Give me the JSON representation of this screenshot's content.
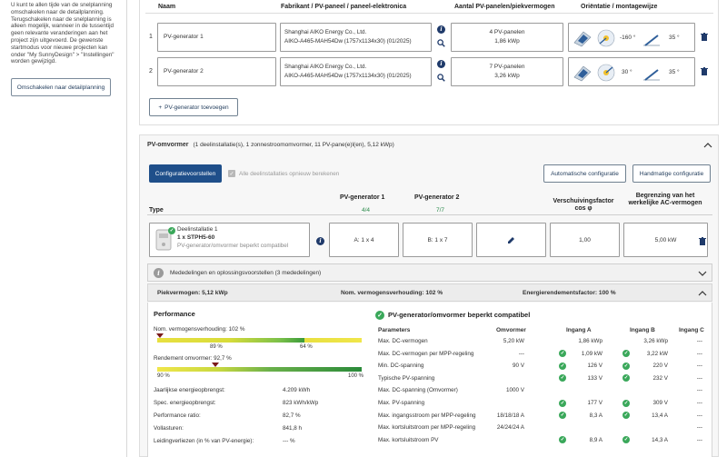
{
  "sidebar": {
    "info_text": "U kunt te allen tijde van de snelplanning omschakelen naar de detailplanning. Terugschakelen naar de snelplanning is alleen mogelijk, wanneer in de tussentijd geen relevante veranderingen aan het project zijn uitgevoerd. De gewenste startmodus voor nieuwe projecten kan onder \"My SunnyDesign\" > \"Instellingen\" worden gewijzigd.",
    "switch_button": "Omschakelen naar detailplanning"
  },
  "generators": {
    "col_name": "Naam",
    "col_manufacturer": "Fabrikant / PV-paneel / paneel-elektronica",
    "col_count": "Aantal PV-panelen/piekvermogen",
    "col_orientation": "Oriëntatie / montagewijze",
    "rows": [
      {
        "index": "1",
        "name": "PV-generator 1",
        "manufacturer": "Shanghai AIKO Energy Co., Ltd.",
        "module": "AIKO-A465-MAH54Dw (1757x1134x30) (01/2025)",
        "panels": "4 PV-panelen",
        "power": "1,86 kWp",
        "azimuth": "-160 °",
        "tilt": "35 °"
      },
      {
        "index": "2",
        "name": "PV-generator 2",
        "manufacturer": "Shanghai AIKO Energy Co., Ltd.",
        "module": "AIKO-A465-MAH54Dw (1757x1134x30) (01/2025)",
        "panels": "7 PV-panelen",
        "power": "3,26 kWp",
        "azimuth": "30 °",
        "tilt": "35 °"
      }
    ],
    "add_button": "PV-generator toevoegen"
  },
  "inverter": {
    "title": "PV-omvormer",
    "summary": "(1 deelinstallatie(s), 1 zonnestroomomvormer, 11 PV-pane(e)l(en), 5,12 kWp)",
    "config_button": "Configuratievoorstellen",
    "recalc_label": "Alle deelinstallaties opnieuw berekenen",
    "auto_button": "Automatische configuratie",
    "manual_button": "Handmatige configuratie",
    "col_type": "Type",
    "col_gen1": "PV-generator 1",
    "col_gen1_count": "4/4",
    "col_gen2": "PV-generator 2",
    "col_gen2_count": "7/7",
    "col_cos": "Verschuivingsfactor cos φ",
    "col_limit": "Begrenzing van het werkelijke AC-vermogen",
    "sub_name": "Deelinstallatie 1",
    "sub_model": "1 x STPH5-60",
    "sub_status": "PV-generator/omvormer beperkt compatibel",
    "input_a": "A: 1 x 4",
    "input_b": "B: 1 x 7",
    "cos_value": "1,00",
    "limit_value": "5,00 kW",
    "messages": "Mededelingen en oplossingsvoorstellen (3 mededelingen)",
    "peak_power": "Piekvermogen: 5,12 kWp",
    "ratio": "Nom. vermogensverhouding: 102 %",
    "energy_factor": "Energierendementsfactor: 100 %"
  },
  "performance": {
    "title": "Performance",
    "ratio_label": "Nom. vermogensverhouding: 102 %",
    "ratio_marker": 0.02,
    "ratio_tick_left": "89 %",
    "ratio_tick_right": "64 %",
    "efficiency_label": "Rendement omvormer: 92,7 %",
    "efficiency_marker": 0.28,
    "eff_tick_left": "90 %",
    "eff_tick_right": "100 %",
    "stats": [
      {
        "label": "Jaarlijkse energieopbrengst:",
        "value": "4.209 kWh"
      },
      {
        "label": "Spec. energieopbrengst:",
        "value": "823 kWh/kWp"
      },
      {
        "label": "Performance ratio:",
        "value": "82,7 %"
      },
      {
        "label": "Vollasturen:",
        "value": "841,8  h"
      },
      {
        "label": "Leidingverliezen (in % van PV-energie):",
        "value": "--- %"
      }
    ]
  },
  "compat": {
    "title": "PV-generator/omvormer beperkt compatibel",
    "headers": [
      "Parameters",
      "Omvormer",
      "Ingang A",
      "Ingang B",
      "Ingang C"
    ],
    "rows": [
      {
        "param": "Max. DC-vermogen",
        "inv": "5,20 kW",
        "a": "1,86 kWp",
        "a_ok": false,
        "b": "3,26 kWp",
        "b_ok": false,
        "c": "---"
      },
      {
        "param": "Max. DC-vermogen per MPP-regeling",
        "inv": "---",
        "a": "1,09 kW",
        "a_ok": true,
        "b": "3,22 kW",
        "b_ok": true,
        "c": "---"
      },
      {
        "param": "Min. DC-spanning",
        "inv": "90 V",
        "a": "126 V",
        "a_ok": true,
        "b": "220 V",
        "b_ok": true,
        "c": "---"
      },
      {
        "param": "Typische PV-spanning",
        "inv": "",
        "a": "133 V",
        "a_ok": true,
        "b": "232 V",
        "b_ok": true,
        "c": "---"
      },
      {
        "param": "Max. DC-spanning (Omvormer)",
        "inv": "1000 V",
        "a": "",
        "a_ok": false,
        "b": "",
        "b_ok": false,
        "c": "---"
      },
      {
        "param": "Max. PV-spanning",
        "inv": "",
        "a": "177 V",
        "a_ok": true,
        "b": "309 V",
        "b_ok": true,
        "c": "---"
      },
      {
        "param": "Max. ingangsstroom per MPP-regeling",
        "inv": "18/18/18 A",
        "a": "8,3 A",
        "a_ok": true,
        "b": "13,4 A",
        "b_ok": true,
        "c": "---"
      },
      {
        "param": "Max. kortsluitstroom per MPP-regeling",
        "inv": "24/24/24 A",
        "a": "",
        "a_ok": false,
        "b": "",
        "b_ok": false,
        "c": "---"
      },
      {
        "param": "Max. kortsluitstroom PV",
        "inv": "",
        "a": "8,9 A",
        "a_ok": true,
        "b": "14,3 A",
        "b_ok": true,
        "c": "---"
      }
    ]
  }
}
